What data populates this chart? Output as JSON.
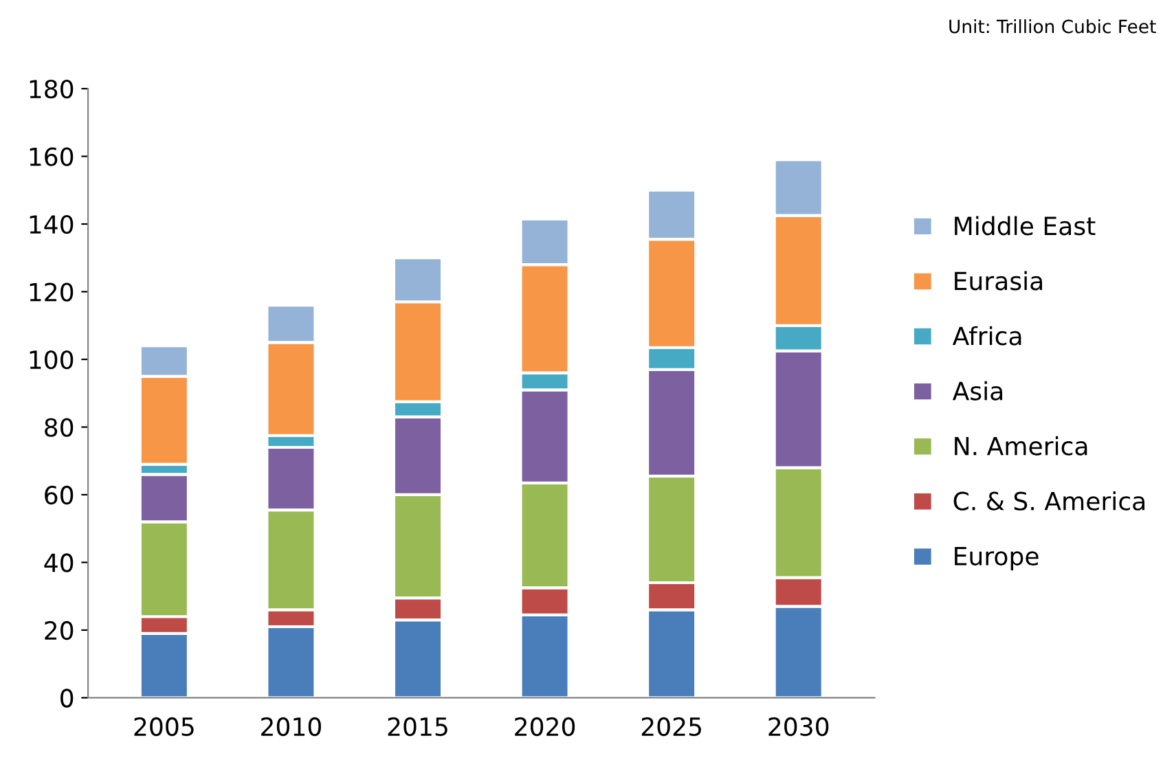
{
  "chart_data": {
    "type": "bar",
    "stacked": true,
    "annotations": [
      "Unit: Trillion Cubic Feet"
    ],
    "categories": [
      "2005",
      "2010",
      "2015",
      "2020",
      "2025",
      "2030"
    ],
    "series": [
      {
        "name": "Europe",
        "color": "#4a7ebb",
        "values": [
          19,
          21,
          23,
          24.5,
          26,
          27
        ]
      },
      {
        "name": "C. & S. America",
        "color": "#be4b48",
        "values": [
          5,
          5,
          6.5,
          8,
          8,
          8.5
        ]
      },
      {
        "name": "N. America",
        "color": "#98b954",
        "values": [
          28,
          29.5,
          30.5,
          31,
          31.5,
          32.5
        ]
      },
      {
        "name": "Asia",
        "color": "#7d60a0",
        "values": [
          14,
          18.5,
          23,
          27.5,
          31.5,
          34.5
        ]
      },
      {
        "name": "Africa",
        "color": "#46aac5",
        "values": [
          3,
          3.5,
          4.5,
          5,
          6.5,
          7.5
        ]
      },
      {
        "name": "Eurasia",
        "color": "#f79646",
        "values": [
          26,
          27.5,
          29.5,
          32,
          32,
          32.5
        ]
      },
      {
        "name": "Middle East",
        "color": "#95b3d7",
        "values": [
          9,
          11,
          13,
          13.5,
          14.5,
          16.5
        ]
      }
    ],
    "ylim": [
      0,
      180
    ],
    "yticks": [
      0,
      20,
      40,
      60,
      80,
      100,
      120,
      140,
      160,
      180
    ],
    "grid": false,
    "legend": "right"
  }
}
